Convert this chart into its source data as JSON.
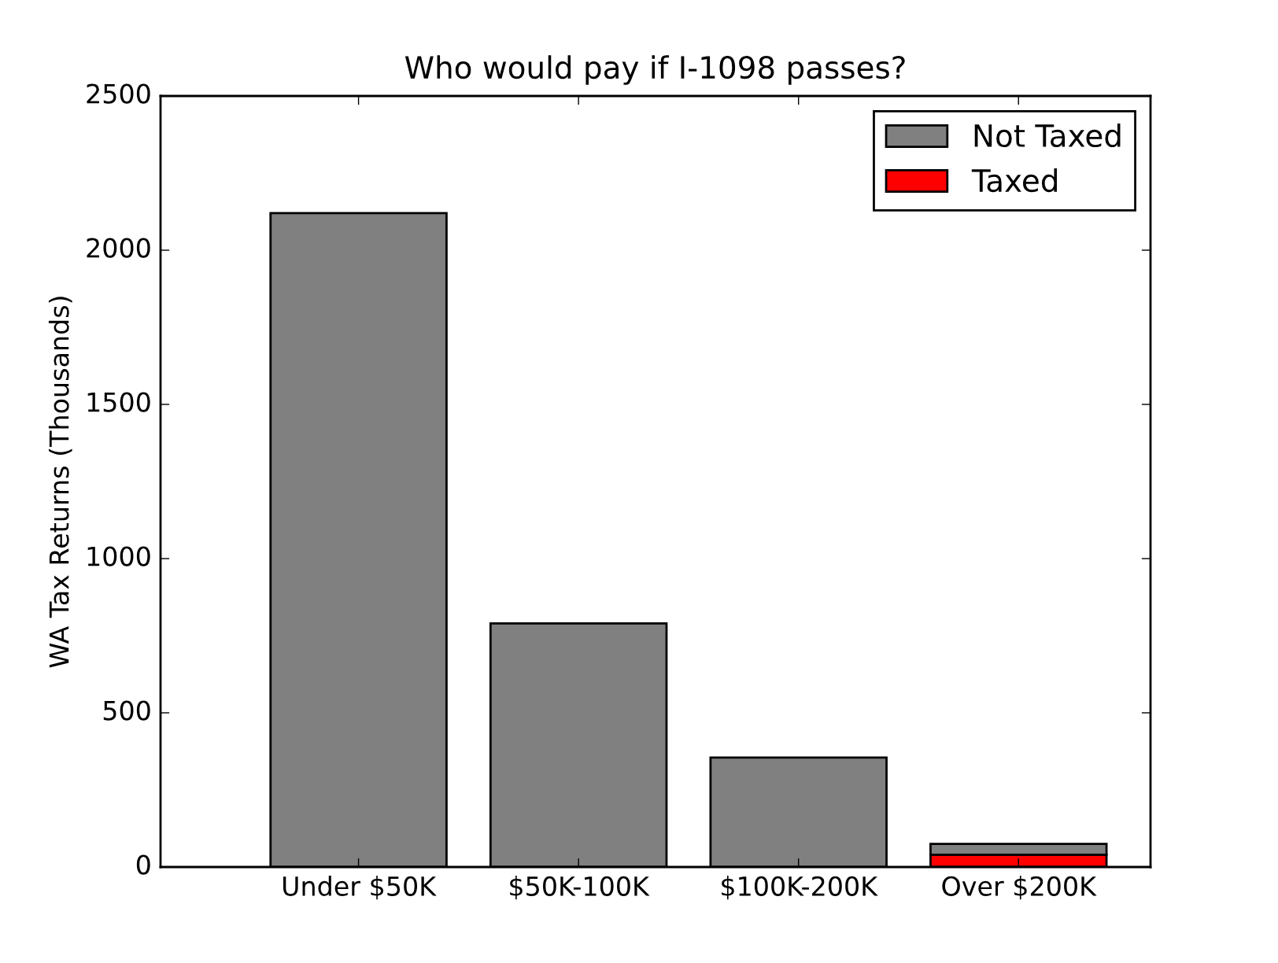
{
  "chart_data": {
    "type": "bar",
    "title": "Who would pay if I-1098 passes?",
    "ylabel": "WA Tax Returns (Thousands)",
    "categories": [
      "Under $50K",
      "$50K-100K",
      "$100K-200K",
      "Over $200K"
    ],
    "stacked": true,
    "series": [
      {
        "name": "Taxed",
        "color": "#ff0000",
        "values": [
          0,
          0,
          0,
          40
        ]
      },
      {
        "name": "Not Taxed",
        "color": "#808080",
        "values": [
          2120,
          790,
          355,
          35
        ]
      }
    ],
    "ylim": [
      0,
      2500
    ],
    "yticks": [
      0,
      500,
      1000,
      1500,
      2000,
      2500
    ],
    "grid": false,
    "legend": "top right"
  }
}
